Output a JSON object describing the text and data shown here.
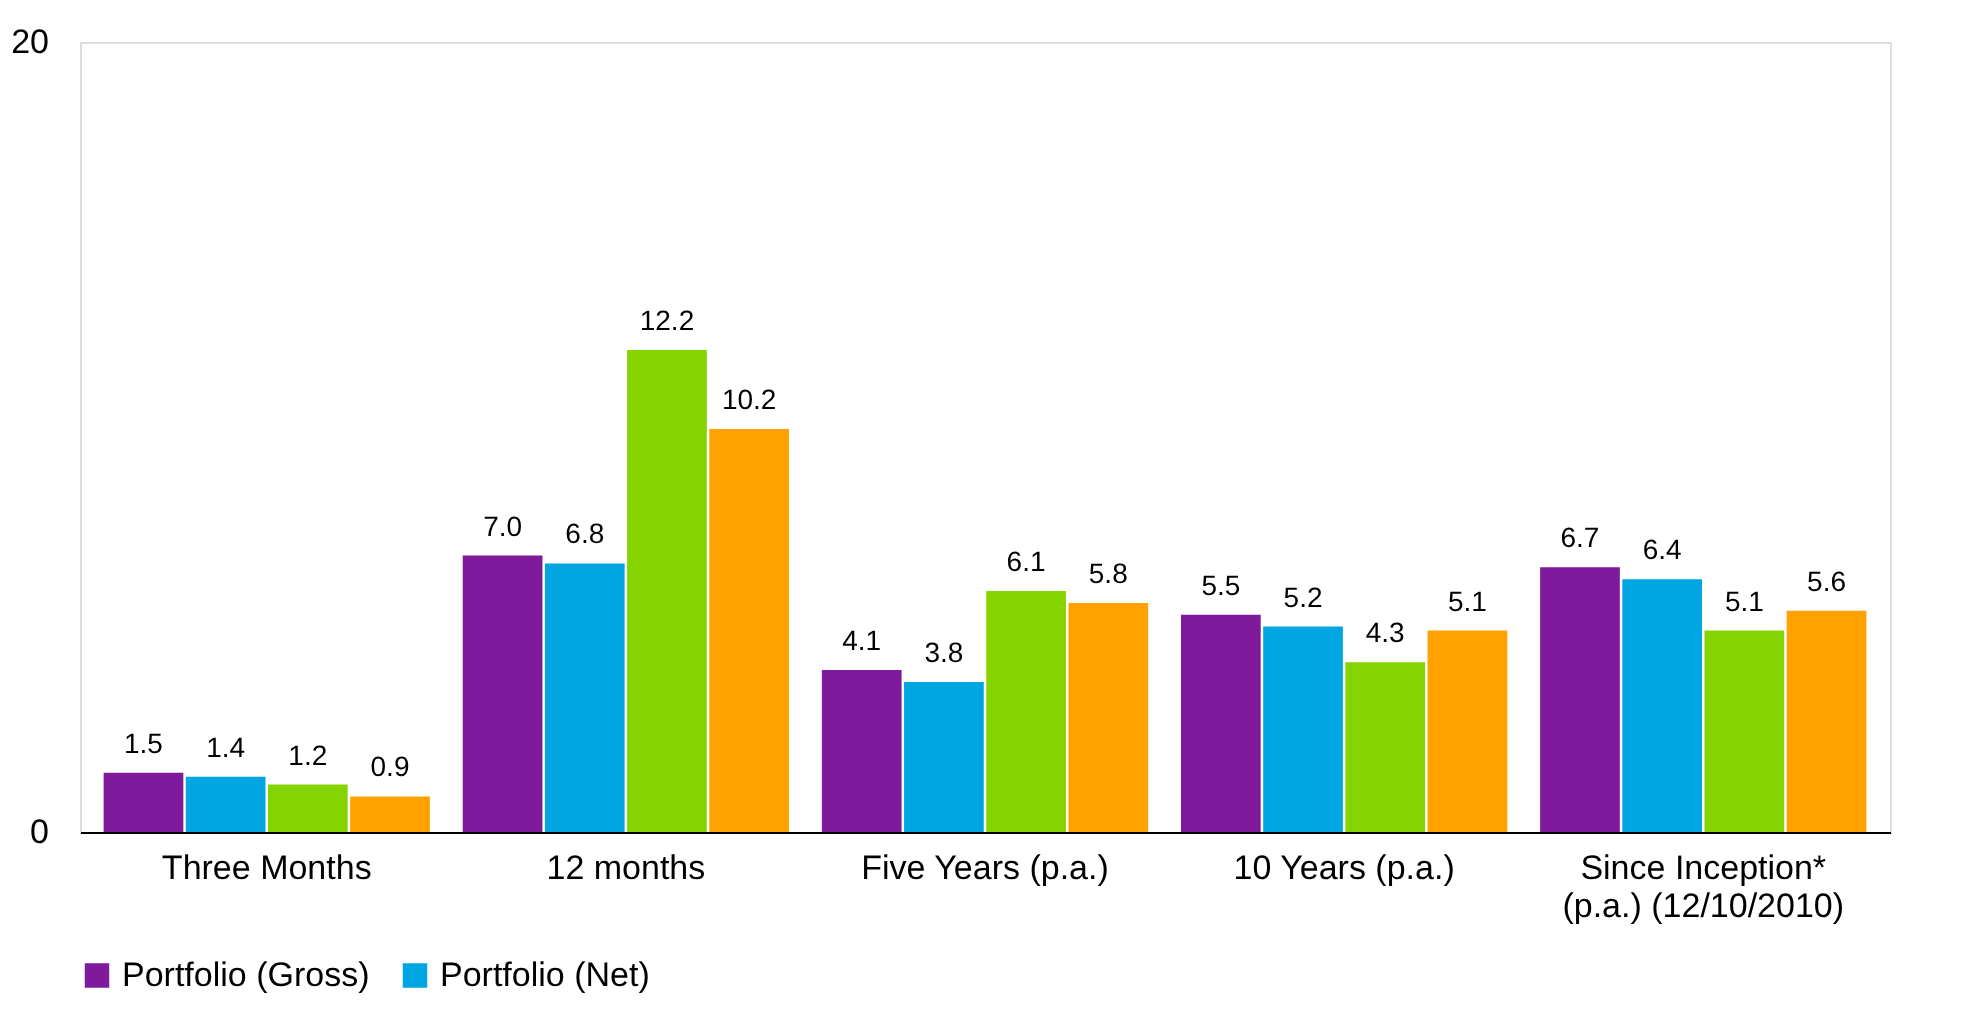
{
  "chart_data": {
    "type": "bar",
    "categories": [
      "Three Months",
      "12 months",
      "Five Years (p.a.)",
      "10 Years (p.a.)",
      "Since Inception*\n(p.a.) (12/10/2010)"
    ],
    "series": [
      {
        "name": "Portfolio (Gross)",
        "color": "#7f1a9c",
        "values": [
          1.5,
          7.0,
          4.1,
          5.5,
          6.7
        ],
        "value_labels": [
          "1.5",
          "7.0",
          "4.1",
          "5.5",
          "6.7"
        ]
      },
      {
        "name": "Portfolio (Net)",
        "color": "#00a6e2",
        "values": [
          1.4,
          6.8,
          3.8,
          5.2,
          6.4
        ],
        "value_labels": [
          "1.4",
          "6.8",
          "3.8",
          "5.2",
          "6.4"
        ]
      },
      {
        "color": "#85d300",
        "values": [
          1.2,
          12.2,
          6.1,
          4.3,
          5.1
        ],
        "value_labels": [
          "1.2",
          "12.2",
          "6.1",
          "4.3",
          "5.1"
        ]
      },
      {
        "color": "#ffa200",
        "values": [
          0.9,
          10.2,
          5.8,
          5.1,
          5.6
        ],
        "value_labels": [
          "0.9",
          "10.2",
          "5.8",
          "5.1",
          "5.6"
        ]
      }
    ],
    "ylim": [
      0,
      20
    ],
    "yticks": [
      0,
      20
    ],
    "legend": "bottom"
  }
}
